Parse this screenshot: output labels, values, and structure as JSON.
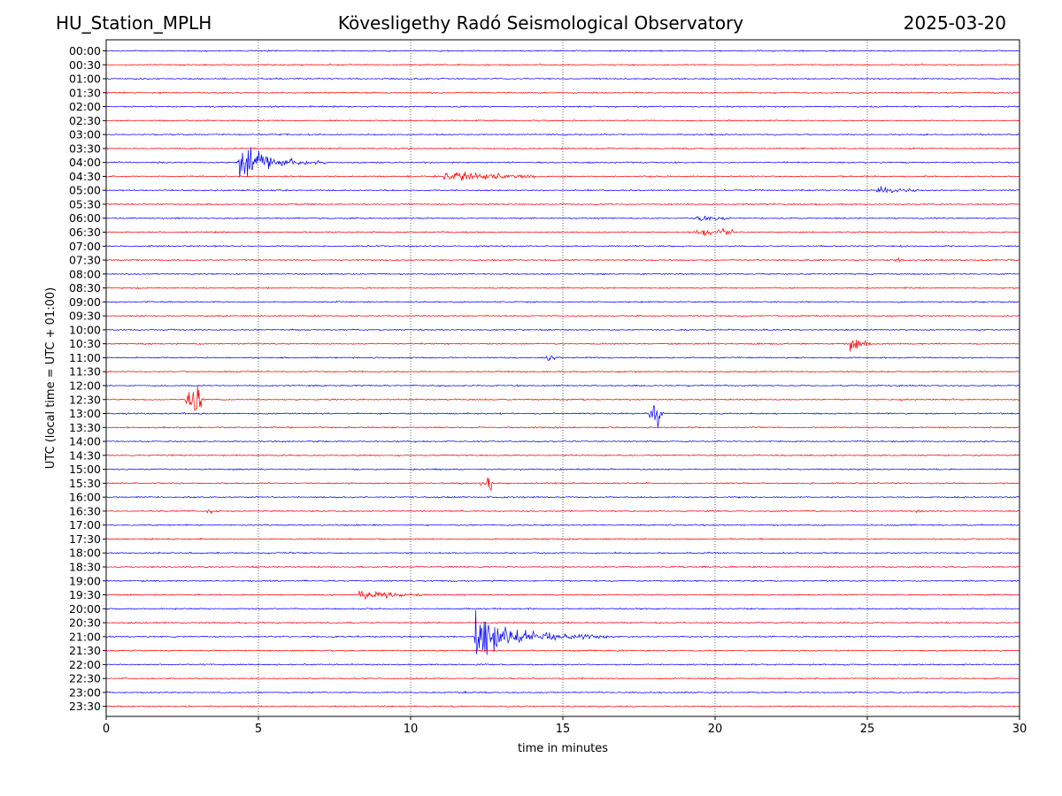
{
  "header": {
    "station": "HU_Station_MPLH",
    "observatory": "Kövesligethy Radó Seismological Observatory",
    "date": "2025-03-20"
  },
  "chart_data": {
    "type": "line",
    "title": "Kövesligethy Radó Seismological Observatory",
    "xlabel": "time in minutes",
    "ylabel": "UTC (local time = UTC + 01:00)",
    "xlim": [
      0,
      30
    ],
    "x_ticks": [
      0,
      5,
      10,
      15,
      20,
      25,
      30
    ],
    "x_tick_labels": [
      "0",
      "5",
      "10",
      "15",
      "20",
      "25",
      "30"
    ],
    "grid": "vertical dotted lines at 5-minute ticks",
    "row_labels": [
      "00:00",
      "00:30",
      "01:00",
      "01:30",
      "02:00",
      "02:30",
      "03:00",
      "03:30",
      "04:00",
      "04:30",
      "05:00",
      "05:30",
      "06:00",
      "06:30",
      "07:00",
      "07:30",
      "08:00",
      "08:30",
      "09:00",
      "09:30",
      "10:00",
      "10:30",
      "11:00",
      "11:30",
      "12:00",
      "12:30",
      "13:00",
      "13:30",
      "14:00",
      "14:30",
      "15:00",
      "15:30",
      "16:00",
      "16:30",
      "17:00",
      "17:30",
      "18:00",
      "18:30",
      "19:00",
      "19:30",
      "20:00",
      "20:30",
      "21:00",
      "21:30",
      "22:00",
      "22:30",
      "23:00",
      "23:30"
    ],
    "trace_colors": [
      "#0000ff",
      "#ff0000"
    ],
    "events": [
      {
        "row": "04:00",
        "start_min": 4.3,
        "end_min": 7.2,
        "peak_min": 4.5,
        "amplitude": 34,
        "kind": "quake"
      },
      {
        "row": "04:30",
        "start_min": 11.1,
        "end_min": 15.0,
        "peak_min": 11.6,
        "amplitude": 7,
        "kind": "burst"
      },
      {
        "row": "05:00",
        "start_min": 25.3,
        "end_min": 27.0,
        "peak_min": 25.5,
        "amplitude": 6,
        "kind": "burst"
      },
      {
        "row": "06:00",
        "start_min": 19.4,
        "end_min": 20.8,
        "peak_min": 19.7,
        "amplitude": 5,
        "kind": "burst"
      },
      {
        "row": "06:30",
        "start_min": 18.9,
        "end_min": 20.6,
        "peak_min": 20.0,
        "amplitude": 6,
        "kind": "burst"
      },
      {
        "row": "07:30",
        "start_min": 25.9,
        "end_min": 26.3,
        "peak_min": 26.0,
        "amplitude": 3,
        "kind": "burst"
      },
      {
        "row": "10:30",
        "start_min": 24.4,
        "end_min": 25.2,
        "peak_min": 24.5,
        "amplitude": 11,
        "kind": "burst"
      },
      {
        "row": "11:00",
        "start_min": 14.4,
        "end_min": 14.9,
        "peak_min": 14.6,
        "amplitude": 5,
        "kind": "burst"
      },
      {
        "row": "12:30",
        "start_min": 2.6,
        "end_min": 3.2,
        "peak_min": 3.0,
        "amplitude": 34,
        "kind": "spike"
      },
      {
        "row": "13:00",
        "start_min": 17.8,
        "end_min": 18.3,
        "peak_min": 18.1,
        "amplitude": 26,
        "kind": "spike"
      },
      {
        "row": "15:30",
        "start_min": 12.3,
        "end_min": 12.7,
        "peak_min": 12.6,
        "amplitude": 17,
        "kind": "spike"
      },
      {
        "row": "16:30",
        "start_min": 3.3,
        "end_min": 3.6,
        "peak_min": 3.4,
        "amplitude": 4,
        "kind": "burst"
      },
      {
        "row": "16:30",
        "start_min": 26.4,
        "end_min": 27.1,
        "peak_min": 26.7,
        "amplitude": 2,
        "kind": "burst"
      },
      {
        "row": "19:30",
        "start_min": 8.3,
        "end_min": 11.1,
        "peak_min": 8.4,
        "amplitude": 6,
        "kind": "burst"
      },
      {
        "row": "21:00",
        "start_min": 12.1,
        "end_min": 16.5,
        "peak_min": 12.2,
        "amplitude": 40,
        "kind": "quake"
      },
      {
        "row": "23:00",
        "start_min": 11.6,
        "end_min": 11.9,
        "peak_min": 11.7,
        "amplitude": 4,
        "kind": "burst"
      },
      {
        "row": "23:00",
        "start_min": 19.9,
        "end_min": 20.1,
        "peak_min": 20.0,
        "amplitude": 2,
        "kind": "burst"
      }
    ]
  }
}
